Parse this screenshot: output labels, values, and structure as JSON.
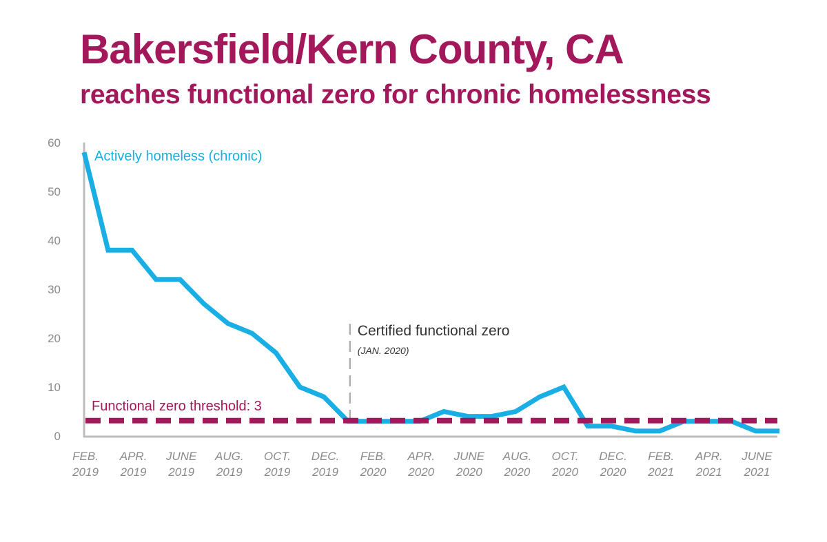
{
  "header": {
    "title": "Bakersfield/Kern County, CA",
    "subtitle": "reaches functional zero for chronic homelessness"
  },
  "colors": {
    "series": "#19aee4",
    "threshold": "#a3185a",
    "title": "#a3185a",
    "axis": "#bdbdbd",
    "annotation_line": "#b0b0b0"
  },
  "chart_data": {
    "type": "line",
    "ylim": [
      0,
      60
    ],
    "yticks": [
      0,
      10,
      20,
      30,
      40,
      50,
      60
    ],
    "x": [
      "2019-02",
      "2019-03",
      "2019-04",
      "2019-05",
      "2019-06",
      "2019-07",
      "2019-08",
      "2019-09",
      "2019-10",
      "2019-11",
      "2019-12",
      "2020-01",
      "2020-02",
      "2020-03",
      "2020-04",
      "2020-05",
      "2020-06",
      "2020-07",
      "2020-08",
      "2020-09",
      "2020-10",
      "2020-11",
      "2020-12",
      "2021-01",
      "2021-02",
      "2021-03",
      "2021-04",
      "2021-05",
      "2021-06",
      "2021-07"
    ],
    "xtick_labels": [
      {
        "x": "2019-02",
        "line1": "FEB.",
        "line2": "2019"
      },
      {
        "x": "2019-04",
        "line1": "APR.",
        "line2": "2019"
      },
      {
        "x": "2019-06",
        "line1": "JUNE",
        "line2": "2019"
      },
      {
        "x": "2019-08",
        "line1": "AUG.",
        "line2": "2019"
      },
      {
        "x": "2019-10",
        "line1": "OCT.",
        "line2": "2019"
      },
      {
        "x": "2019-12",
        "line1": "DEC.",
        "line2": "2019"
      },
      {
        "x": "2020-02",
        "line1": "FEB.",
        "line2": "2020"
      },
      {
        "x": "2020-04",
        "line1": "APR.",
        "line2": "2020"
      },
      {
        "x": "2020-06",
        "line1": "JUNE",
        "line2": "2020"
      },
      {
        "x": "2020-08",
        "line1": "AUG.",
        "line2": "2020"
      },
      {
        "x": "2020-10",
        "line1": "OCT.",
        "line2": "2020"
      },
      {
        "x": "2020-12",
        "line1": "DEC.",
        "line2": "2020"
      },
      {
        "x": "2021-02",
        "line1": "FEB.",
        "line2": "2021"
      },
      {
        "x": "2021-04",
        "line1": "APR.",
        "line2": "2021"
      },
      {
        "x": "2021-06",
        "line1": "JUNE",
        "line2": "2021"
      }
    ],
    "series": [
      {
        "name": "Actively homeless (chronic)",
        "values": [
          58,
          38,
          38,
          32,
          32,
          27,
          23,
          21,
          17,
          10,
          8,
          3,
          3,
          3,
          3,
          5,
          4,
          4,
          5,
          8,
          10,
          2,
          2,
          1,
          1,
          3,
          3,
          3,
          1,
          1
        ]
      }
    ],
    "threshold": {
      "value": 3,
      "label": "Functional zero threshold: 3"
    },
    "annotation": {
      "x": "2020-01",
      "label": "Certified functional zero",
      "sublabel": "(JAN. 2020)"
    }
  }
}
